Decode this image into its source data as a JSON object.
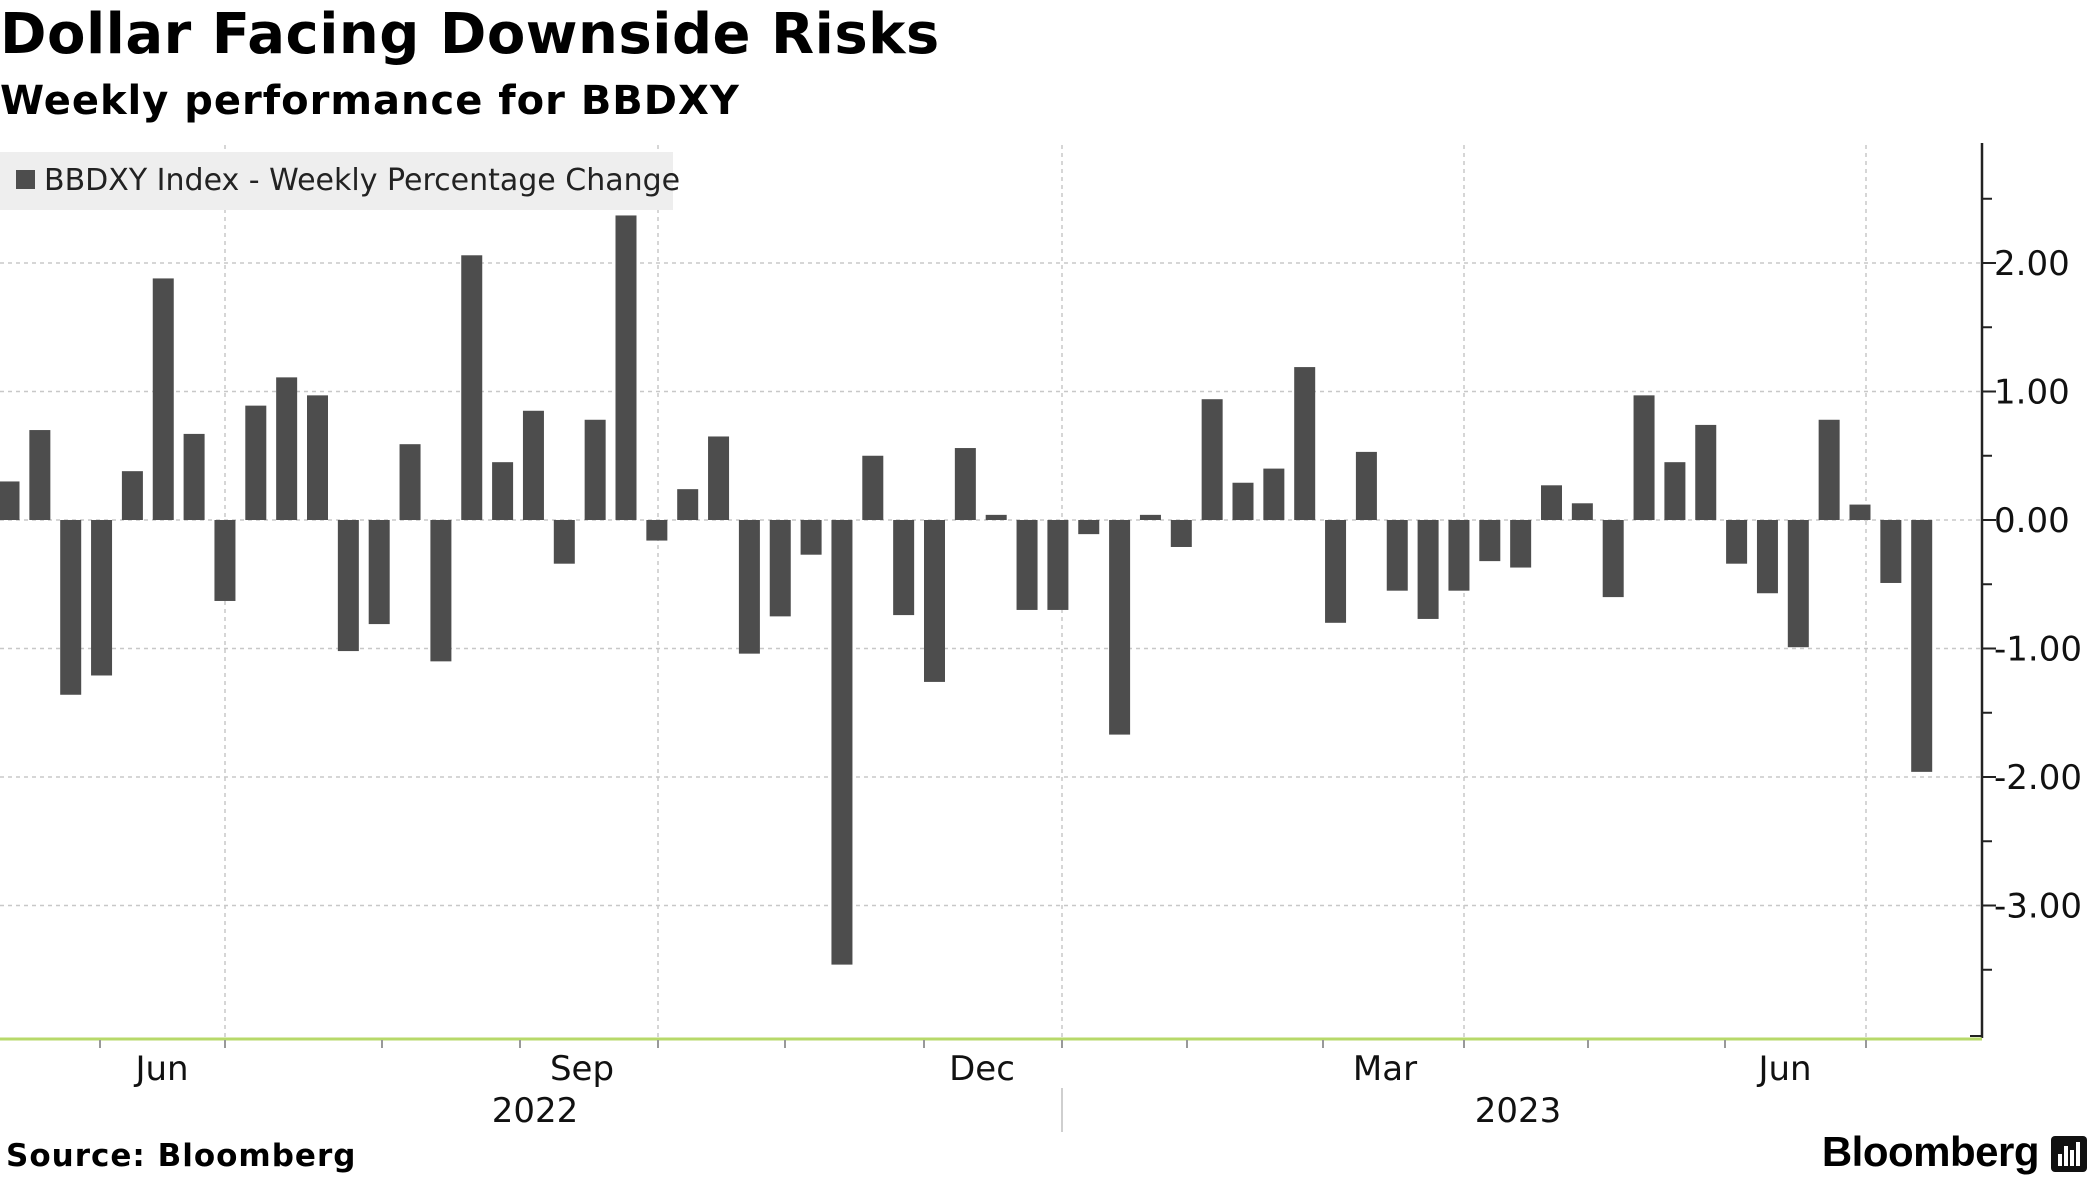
{
  "title": "Dollar Facing Downside Risks",
  "subtitle": "Weekly performance for BBDXY",
  "source": "Source: Bloomberg",
  "brand": "Bloomberg",
  "brand_icon": "bloomberg-terminal-icon",
  "colors": {
    "bar": "#4d4d4d",
    "axis": "#222222",
    "xaxis_line": "#b7d96a",
    "grid": "#c8c8c8",
    "legend_bg": "#eeeeee"
  },
  "chart_data": {
    "type": "bar",
    "legend": "BBDXY Index - Weekly Percentage Change",
    "legend_position": "top-left",
    "y_axis_side": "right",
    "ylim": [
      -4.0,
      2.9
    ],
    "y_ticks": [
      2.0,
      1.0,
      0.0,
      -1.0,
      -2.0,
      -3.0
    ],
    "y_tick_labels": [
      "2.00",
      "1.00",
      "0.00",
      "-1.00",
      "-2.00",
      "-3.00"
    ],
    "grid": true,
    "x_tick_labels": [
      "Jun",
      "Sep",
      "Dec",
      "Mar",
      "Jun"
    ],
    "year_labels": [
      "2022",
      "2023"
    ],
    "values": [
      0.3,
      0.7,
      -1.36,
      -1.21,
      0.38,
      1.88,
      0.67,
      -0.63,
      0.89,
      1.11,
      0.97,
      -1.02,
      -0.81,
      0.59,
      -1.1,
      2.06,
      0.45,
      0.85,
      -0.34,
      0.78,
      2.37,
      -0.16,
      0.24,
      0.65,
      -1.04,
      -0.75,
      -0.27,
      -3.46,
      0.5,
      -0.74,
      -1.26,
      0.56,
      0.04,
      -0.7,
      -0.7,
      -0.11,
      -1.67,
      0.04,
      -0.21,
      0.94,
      0.29,
      0.4,
      1.19,
      -0.8,
      0.53,
      -0.55,
      -0.77,
      -0.55,
      -0.32,
      -0.37,
      0.27,
      0.13,
      -0.6,
      0.97,
      0.45,
      0.74,
      -0.34,
      -0.57,
      -0.99,
      0.78,
      0.12,
      -0.49,
      -1.96
    ]
  }
}
